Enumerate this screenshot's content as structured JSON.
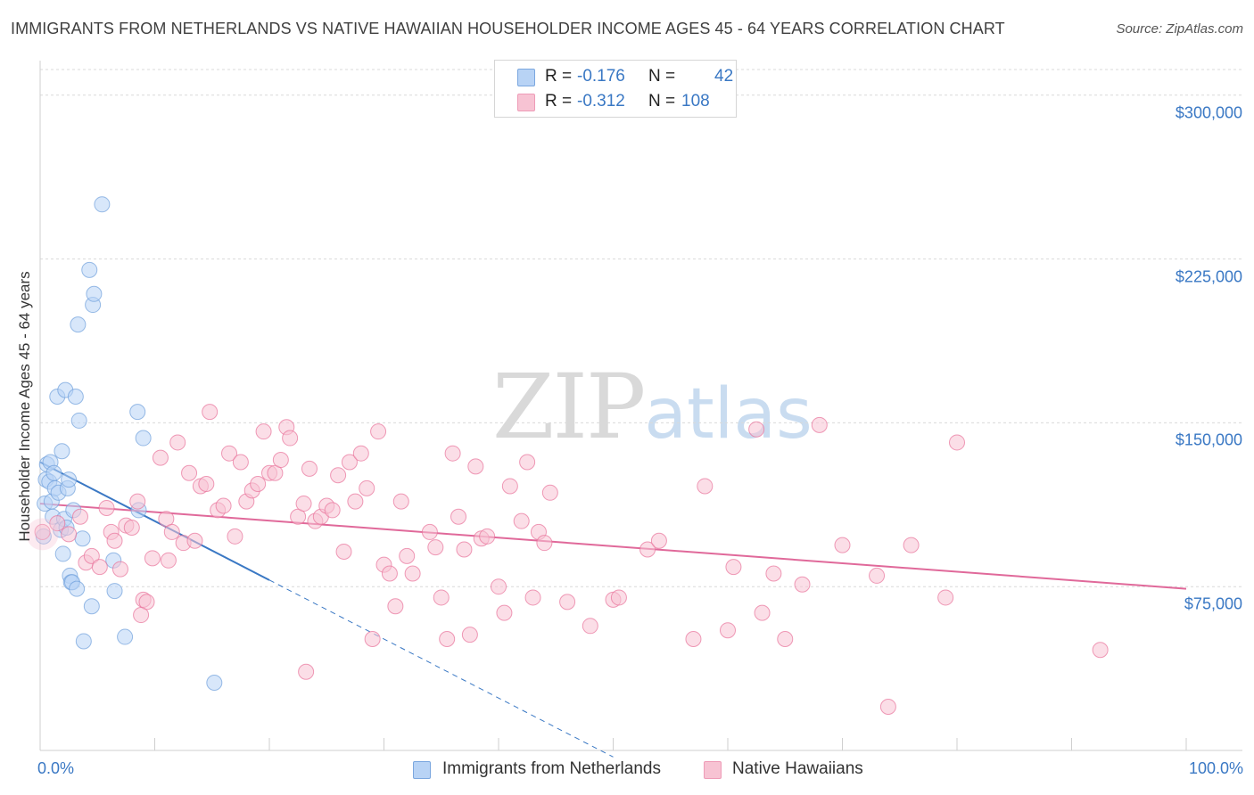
{
  "chart_data": {
    "type": "scatter",
    "title": "IMMIGRANTS FROM NETHERLANDS VS NATIVE HAWAIIAN HOUSEHOLDER INCOME AGES 45 - 64 YEARS CORRELATION CHART",
    "source": "Source: ZipAtlas.com",
    "ylabel": "Householder Income Ages 45 - 64 years",
    "xlim": [
      0,
      100
    ],
    "ylim": [
      0,
      315000
    ],
    "x_tick_labels": {
      "left": "0.0%",
      "right": "100.0%"
    },
    "y_ticks": [
      {
        "value": 75000,
        "label": "$75,000"
      },
      {
        "value": 150000,
        "label": "$150,000"
      },
      {
        "value": 225000,
        "label": "$225,000"
      },
      {
        "value": 300000,
        "label": "$300,000"
      }
    ],
    "watermark": {
      "zip": "ZIP",
      "atlas": "atlas"
    },
    "legend": [
      {
        "r_label": "R =",
        "r_value": "-0.176",
        "n_label": "N =",
        "n_value": "42"
      },
      {
        "r_label": "R =",
        "r_value": "-0.312",
        "n_label": "N =",
        "n_value": "108"
      }
    ],
    "series": [
      {
        "name": "Immigrants from Netherlands",
        "color": "#6f9fdc",
        "fill": "#b8d3f5",
        "trend": {
          "x0": 0,
          "y0": 132000,
          "x1": 20,
          "y1": 78000,
          "dash_to_x": 50
        },
        "points": [
          [
            0.3,
            98000
          ],
          [
            0.4,
            113000
          ],
          [
            0.5,
            124000
          ],
          [
            0.6,
            131000
          ],
          [
            0.8,
            123000
          ],
          [
            0.9,
            132000
          ],
          [
            1.0,
            114000
          ],
          [
            1.1,
            107000
          ],
          [
            1.2,
            127000
          ],
          [
            1.3,
            120000
          ],
          [
            1.5,
            162000
          ],
          [
            1.6,
            118000
          ],
          [
            1.8,
            101000
          ],
          [
            1.9,
            137000
          ],
          [
            2.0,
            90000
          ],
          [
            2.1,
            106000
          ],
          [
            2.2,
            165000
          ],
          [
            2.3,
            102000
          ],
          [
            2.4,
            120000
          ],
          [
            2.5,
            124000
          ],
          [
            2.6,
            80000
          ],
          [
            2.7,
            77000
          ],
          [
            2.8,
            77000
          ],
          [
            2.9,
            110000
          ],
          [
            3.1,
            162000
          ],
          [
            3.2,
            74000
          ],
          [
            3.3,
            195000
          ],
          [
            3.4,
            151000
          ],
          [
            3.7,
            97000
          ],
          [
            3.8,
            50000
          ],
          [
            4.3,
            220000
          ],
          [
            4.5,
            66000
          ],
          [
            4.6,
            204000
          ],
          [
            4.7,
            209000
          ],
          [
            5.4,
            250000
          ],
          [
            6.4,
            87000
          ],
          [
            6.5,
            73000
          ],
          [
            7.4,
            52000
          ],
          [
            8.5,
            155000
          ],
          [
            8.6,
            110000
          ],
          [
            9.0,
            143000
          ],
          [
            15.2,
            31000
          ]
        ]
      },
      {
        "name": "Native Hawaiians",
        "color": "#e8729a",
        "fill": "#f7c3d3",
        "trend": {
          "x0": 0,
          "y0": 113000,
          "x1": 100,
          "y1": 74000
        },
        "points": [
          [
            0.2,
            100000
          ],
          [
            1.5,
            104000
          ],
          [
            2.5,
            99000
          ],
          [
            3.5,
            107000
          ],
          [
            4.0,
            86000
          ],
          [
            4.5,
            89000
          ],
          [
            5.2,
            84000
          ],
          [
            5.8,
            111000
          ],
          [
            6.2,
            100000
          ],
          [
            6.5,
            96000
          ],
          [
            7.0,
            83000
          ],
          [
            7.5,
            103000
          ],
          [
            8.0,
            102000
          ],
          [
            8.5,
            114000
          ],
          [
            9.0,
            69000
          ],
          [
            9.3,
            68000
          ],
          [
            9.8,
            88000
          ],
          [
            10.5,
            134000
          ],
          [
            11.0,
            106000
          ],
          [
            11.5,
            100000
          ],
          [
            12.0,
            141000
          ],
          [
            12.5,
            95000
          ],
          [
            13.0,
            127000
          ],
          [
            13.5,
            96000
          ],
          [
            14.0,
            121000
          ],
          [
            14.5,
            122000
          ],
          [
            14.8,
            155000
          ],
          [
            15.5,
            110000
          ],
          [
            16.0,
            112000
          ],
          [
            16.5,
            136000
          ],
          [
            17.0,
            98000
          ],
          [
            17.5,
            132000
          ],
          [
            18.0,
            114000
          ],
          [
            18.5,
            119000
          ],
          [
            19.0,
            122000
          ],
          [
            19.5,
            146000
          ],
          [
            20.0,
            127000
          ],
          [
            20.5,
            127000
          ],
          [
            21.0,
            133000
          ],
          [
            21.5,
            148000
          ],
          [
            21.8,
            143000
          ],
          [
            22.5,
            107000
          ],
          [
            23.0,
            113000
          ],
          [
            23.5,
            129000
          ],
          [
            24.0,
            105000
          ],
          [
            24.5,
            107000
          ],
          [
            25.0,
            112000
          ],
          [
            25.5,
            110000
          ],
          [
            26.0,
            126000
          ],
          [
            26.5,
            91000
          ],
          [
            27.0,
            132000
          ],
          [
            27.5,
            114000
          ],
          [
            28.0,
            136000
          ],
          [
            28.5,
            120000
          ],
          [
            29.0,
            51000
          ],
          [
            29.5,
            146000
          ],
          [
            30.0,
            85000
          ],
          [
            30.5,
            81000
          ],
          [
            31.0,
            66000
          ],
          [
            31.5,
            114000
          ],
          [
            32.0,
            89000
          ],
          [
            32.5,
            81000
          ],
          [
            34.0,
            100000
          ],
          [
            34.5,
            93000
          ],
          [
            35.0,
            70000
          ],
          [
            35.5,
            51000
          ],
          [
            36.0,
            136000
          ],
          [
            36.5,
            107000
          ],
          [
            37.0,
            92000
          ],
          [
            37.5,
            53000
          ],
          [
            38.0,
            130000
          ],
          [
            38.5,
            97000
          ],
          [
            39.0,
            98000
          ],
          [
            40.0,
            75000
          ],
          [
            40.5,
            63000
          ],
          [
            41.0,
            121000
          ],
          [
            42.0,
            105000
          ],
          [
            42.5,
            132000
          ],
          [
            43.0,
            70000
          ],
          [
            43.5,
            100000
          ],
          [
            44.0,
            95000
          ],
          [
            44.5,
            118000
          ],
          [
            46.0,
            68000
          ],
          [
            48.0,
            57000
          ],
          [
            50.0,
            69000
          ],
          [
            50.5,
            70000
          ],
          [
            53.0,
            92000
          ],
          [
            54.0,
            96000
          ],
          [
            57.0,
            51000
          ],
          [
            58.0,
            121000
          ],
          [
            60.0,
            55000
          ],
          [
            60.5,
            84000
          ],
          [
            62.5,
            147000
          ],
          [
            63.0,
            63000
          ],
          [
            64.0,
            81000
          ],
          [
            65.0,
            51000
          ],
          [
            66.5,
            76000
          ],
          [
            68.0,
            149000
          ],
          [
            70.0,
            94000
          ],
          [
            73.0,
            80000
          ],
          [
            74.0,
            20000
          ],
          [
            76.0,
            94000
          ],
          [
            79.0,
            70000
          ],
          [
            80.0,
            141000
          ],
          [
            92.5,
            46000
          ],
          [
            23.2,
            36000
          ],
          [
            11.2,
            87000
          ],
          [
            8.8,
            62000
          ]
        ]
      }
    ]
  }
}
